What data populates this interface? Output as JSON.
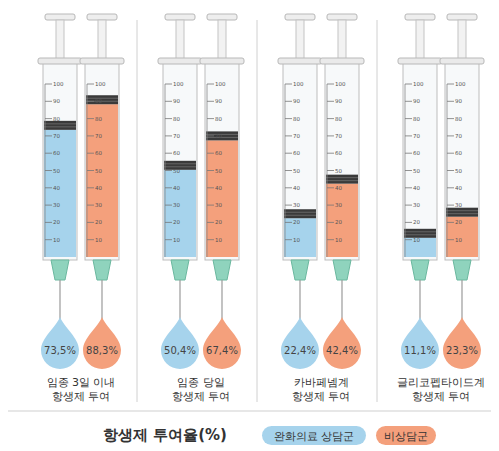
{
  "chart_data": {
    "type": "bar",
    "title": "항생제 투여율(%)",
    "categories": [
      "임종 3일 이내\n항생제 투여",
      "임종 당일\n항생제 투여",
      "카바페넴계\n항생제 투여",
      "글리코펩타이드계\n항생제 투여"
    ],
    "series": [
      {
        "name": "완화의료 상담군",
        "color": "#a6d3ec",
        "values": [
          73.5,
          50.4,
          22.4,
          11.1
        ],
        "value_labels": [
          "73,5%",
          "50,4%",
          "22,4%",
          "11,1%"
        ]
      },
      {
        "name": "비상담군",
        "color": "#f4a07c",
        "values": [
          88.3,
          67.4,
          42.4,
          23.3
        ],
        "value_labels": [
          "88,3%",
          "67,4%",
          "42,4%",
          "23,3%"
        ]
      }
    ],
    "ylim": [
      0,
      100
    ],
    "yticks": [
      10,
      20,
      30,
      40,
      50,
      60,
      70,
      80,
      90,
      100
    ],
    "grid": false,
    "legend": "bottom",
    "data_labels": true
  }
}
